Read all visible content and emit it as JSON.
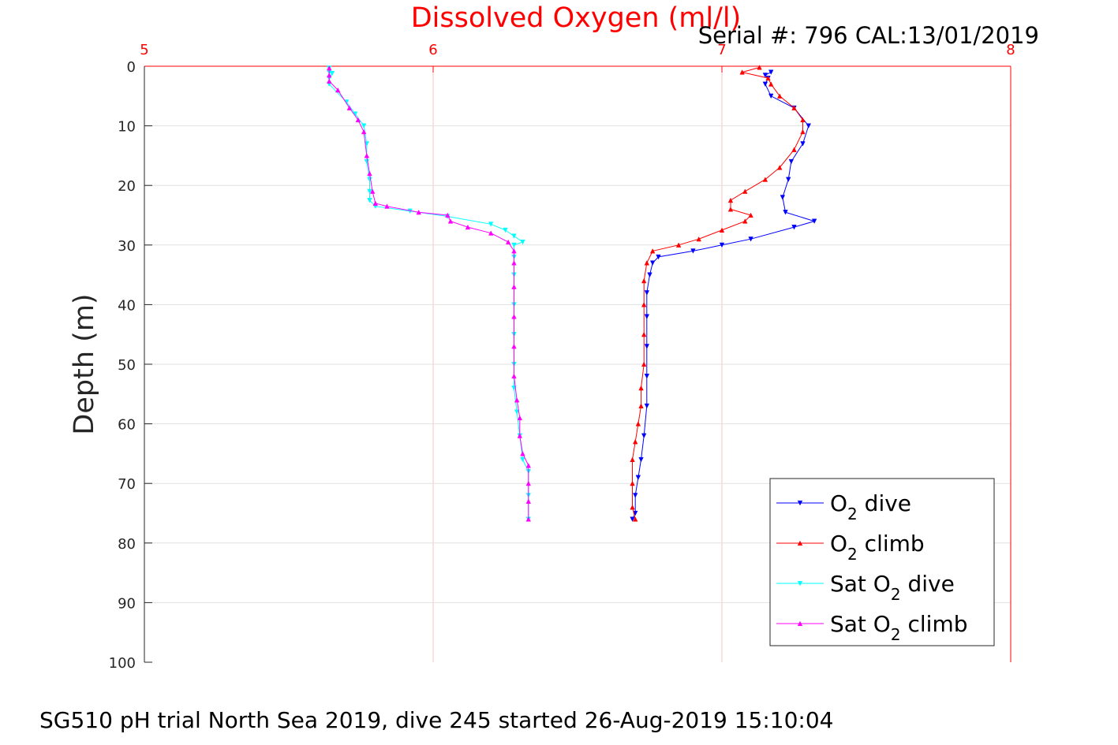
{
  "chart_data": {
    "type": "line",
    "title": "Dissolved Oxygen (ml/l)",
    "subtitle": "Serial #: 796  CAL:13/01/2019",
    "xlabel": "",
    "ylabel": "Depth (m)",
    "xlim": [
      5,
      8
    ],
    "ylim": [
      0,
      100
    ],
    "y_reversed": true,
    "x_axis_location": "top",
    "xticks": [
      "5",
      "6",
      "7",
      "8"
    ],
    "yticks": [
      "0",
      "10",
      "20",
      "30",
      "40",
      "50",
      "60",
      "70",
      "80",
      "90",
      "100"
    ],
    "grid": true,
    "legend_position": "bottom-right",
    "series": [
      {
        "name": "O2 dive",
        "legend": {
          "base": "O",
          "sub": "2",
          "suffix": " dive"
        },
        "color": "#0000ff",
        "marker": "triangle-down",
        "points": [
          [
            7.17,
            1
          ],
          [
            7.15,
            1.5
          ],
          [
            7.16,
            2
          ],
          [
            7.15,
            3
          ],
          [
            7.17,
            5
          ],
          [
            7.25,
            7
          ],
          [
            7.3,
            10
          ],
          [
            7.28,
            13
          ],
          [
            7.24,
            16
          ],
          [
            7.23,
            19
          ],
          [
            7.21,
            22
          ],
          [
            7.22,
            24.5
          ],
          [
            7.32,
            26
          ],
          [
            7.25,
            27
          ],
          [
            7.1,
            29
          ],
          [
            7.0,
            30
          ],
          [
            6.9,
            31
          ],
          [
            6.78,
            32
          ],
          [
            6.76,
            33
          ],
          [
            6.75,
            35
          ],
          [
            6.74,
            38
          ],
          [
            6.74,
            42
          ],
          [
            6.74,
            47
          ],
          [
            6.74,
            52
          ],
          [
            6.74,
            57
          ],
          [
            6.73,
            62
          ],
          [
            6.72,
            66
          ],
          [
            6.71,
            69
          ],
          [
            6.7,
            72
          ],
          [
            6.7,
            75
          ],
          [
            6.69,
            76
          ]
        ]
      },
      {
        "name": "O2 climb",
        "legend": {
          "base": "O",
          "sub": "2",
          "suffix": " climb"
        },
        "color": "#ff0000",
        "marker": "triangle-up",
        "points": [
          [
            6.7,
            76
          ],
          [
            6.69,
            74
          ],
          [
            6.69,
            70
          ],
          [
            6.69,
            66
          ],
          [
            6.7,
            63
          ],
          [
            6.71,
            60
          ],
          [
            6.72,
            57
          ],
          [
            6.72,
            54
          ],
          [
            6.73,
            50
          ],
          [
            6.73,
            45
          ],
          [
            6.73,
            40
          ],
          [
            6.73,
            36
          ],
          [
            6.74,
            33
          ],
          [
            6.76,
            31
          ],
          [
            6.85,
            30
          ],
          [
            6.92,
            29
          ],
          [
            7.0,
            27.5
          ],
          [
            7.08,
            26
          ],
          [
            7.1,
            25
          ],
          [
            7.03,
            24
          ],
          [
            7.03,
            22.5
          ],
          [
            7.08,
            21
          ],
          [
            7.15,
            19
          ],
          [
            7.2,
            17
          ],
          [
            7.25,
            14
          ],
          [
            7.28,
            11
          ],
          [
            7.28,
            9
          ],
          [
            7.25,
            7
          ],
          [
            7.2,
            5
          ],
          [
            7.17,
            3
          ],
          [
            7.16,
            2
          ],
          [
            7.07,
            1
          ],
          [
            7.13,
            0.2
          ]
        ]
      },
      {
        "name": "Sat O2 dive",
        "legend": {
          "base": "Sat O",
          "sub": "2",
          "suffix": " dive"
        },
        "color": "#00ffff",
        "marker": "triangle-down",
        "points": [
          [
            5.64,
            0.3
          ],
          [
            5.64,
            1
          ],
          [
            5.65,
            1.2
          ],
          [
            5.64,
            2
          ],
          [
            5.64,
            3
          ],
          [
            5.7,
            6
          ],
          [
            5.73,
            8
          ],
          [
            5.76,
            10
          ],
          [
            5.77,
            13
          ],
          [
            5.77,
            16
          ],
          [
            5.78,
            19
          ],
          [
            5.78,
            21
          ],
          [
            5.78,
            22.5
          ],
          [
            5.8,
            23.5
          ],
          [
            5.92,
            24.3
          ],
          [
            6.05,
            25.2
          ],
          [
            6.2,
            26.5
          ],
          [
            6.25,
            27.5
          ],
          [
            6.28,
            28.5
          ],
          [
            6.31,
            29.5
          ],
          [
            6.28,
            30
          ],
          [
            6.28,
            32
          ],
          [
            6.28,
            35
          ],
          [
            6.28,
            40
          ],
          [
            6.28,
            45
          ],
          [
            6.28,
            50
          ],
          [
            6.28,
            54
          ],
          [
            6.29,
            58
          ],
          [
            6.3,
            62
          ],
          [
            6.31,
            66
          ],
          [
            6.33,
            68
          ],
          [
            6.33,
            72
          ],
          [
            6.33,
            76
          ]
        ]
      },
      {
        "name": "Sat O2 climb",
        "legend": {
          "base": "Sat O",
          "sub": "2",
          "suffix": " climb"
        },
        "color": "#ff00ff",
        "marker": "triangle-up",
        "points": [
          [
            6.33,
            76
          ],
          [
            6.33,
            73
          ],
          [
            6.33,
            70
          ],
          [
            6.33,
            67
          ],
          [
            6.31,
            65
          ],
          [
            6.3,
            62
          ],
          [
            6.3,
            59
          ],
          [
            6.29,
            56
          ],
          [
            6.28,
            52
          ],
          [
            6.28,
            47
          ],
          [
            6.28,
            42
          ],
          [
            6.28,
            37
          ],
          [
            6.28,
            33
          ],
          [
            6.28,
            31
          ],
          [
            6.26,
            29.5
          ],
          [
            6.2,
            28
          ],
          [
            6.12,
            27
          ],
          [
            6.06,
            26
          ],
          [
            6.05,
            25
          ],
          [
            5.95,
            24.5
          ],
          [
            5.84,
            23.5
          ],
          [
            5.8,
            23
          ],
          [
            5.79,
            21
          ],
          [
            5.78,
            18
          ],
          [
            5.77,
            15
          ],
          [
            5.76,
            11
          ],
          [
            5.74,
            9
          ],
          [
            5.71,
            7
          ],
          [
            5.67,
            4
          ],
          [
            5.64,
            2.5
          ],
          [
            5.64,
            1.5
          ],
          [
            5.64,
            0.3
          ]
        ]
      }
    ]
  },
  "footer": "SG510 pH trial North Sea 2019, dive 245 started 26-Aug-2019 15:10:04"
}
